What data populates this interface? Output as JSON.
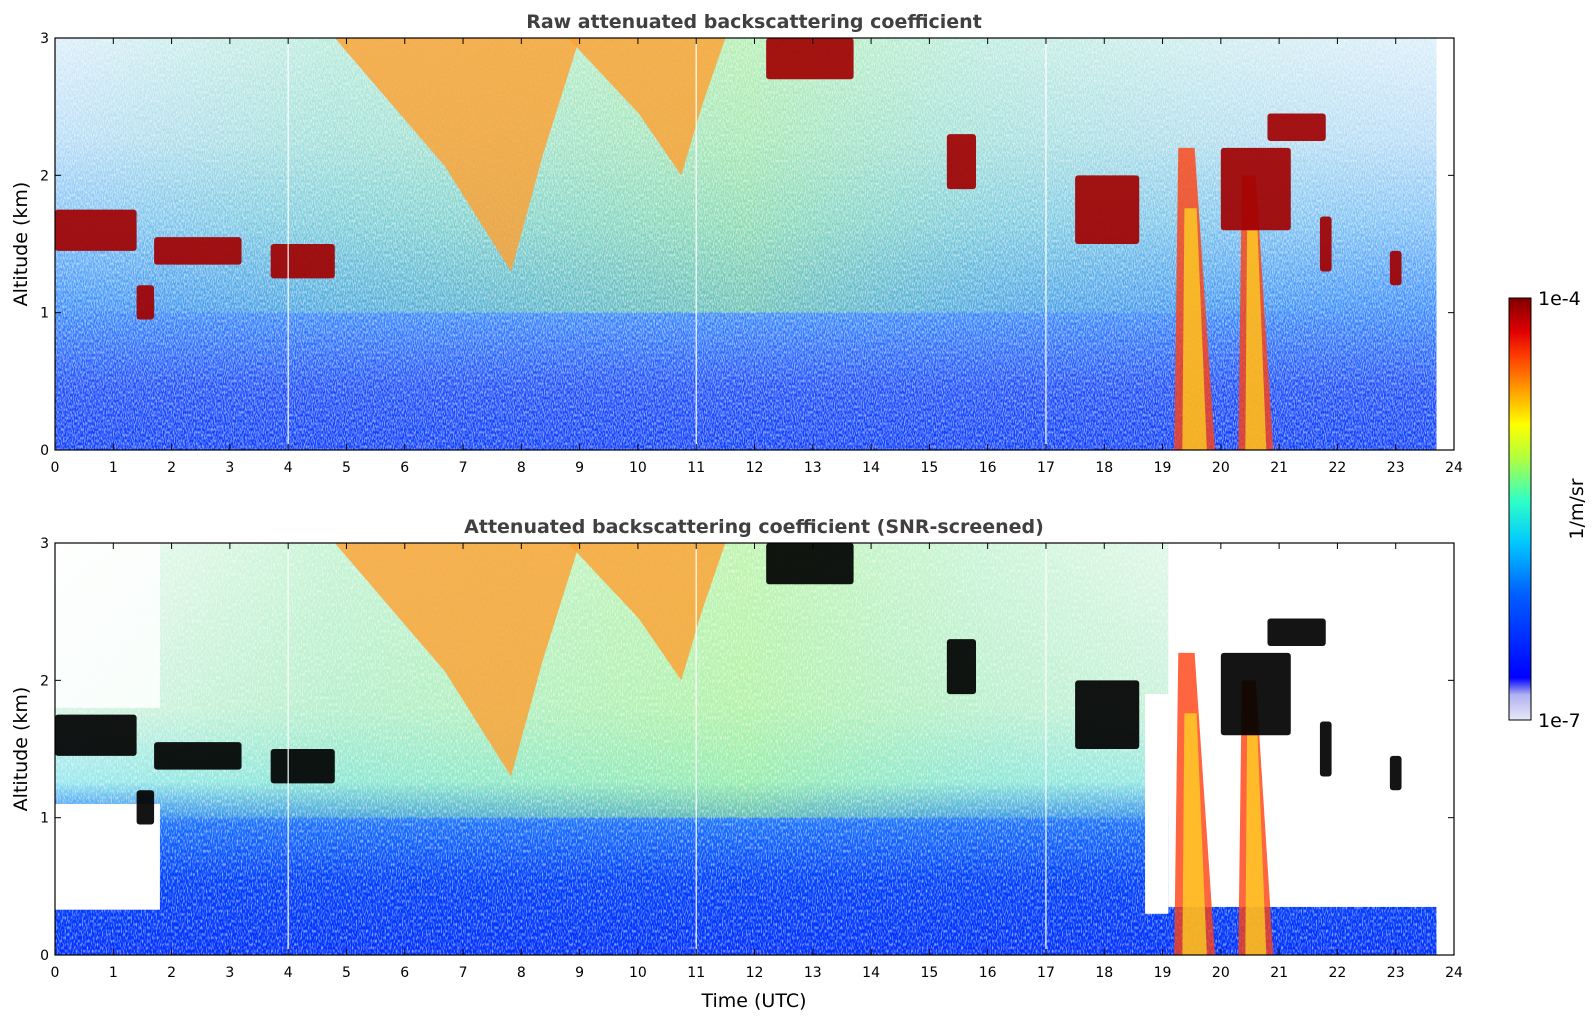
{
  "chart_data": [
    {
      "type": "heatmap",
      "title": "Raw attenuated backscattering coefficient",
      "xlabel": "",
      "ylabel": "Altitude (km)",
      "xlim": [
        0,
        24
      ],
      "ylim": [
        0,
        3
      ],
      "xticks": [
        "0",
        "1",
        "2",
        "3",
        "4",
        "5",
        "6",
        "7",
        "8",
        "9",
        "10",
        "11",
        "12",
        "13",
        "14",
        "15",
        "16",
        "17",
        "18",
        "19",
        "20",
        "21",
        "22",
        "23",
        "24"
      ],
      "yticks": [
        "0",
        "1",
        "2",
        "3"
      ],
      "data_end_time": 23.7,
      "gaps_utc": [
        4.0,
        11.0,
        17.0
      ],
      "features": [
        {
          "kind": "low_cloud",
          "t_start": 0.0,
          "t_end": 1.4,
          "alt_low": 1.45,
          "alt_high": 1.75,
          "level": "1e-4"
        },
        {
          "kind": "low_cloud",
          "t_start": 1.4,
          "t_end": 1.7,
          "alt_low": 0.95,
          "alt_high": 1.2,
          "level": "1e-4"
        },
        {
          "kind": "low_cloud",
          "t_start": 1.7,
          "t_end": 3.2,
          "alt_low": 1.35,
          "alt_high": 1.55,
          "level": "1e-4"
        },
        {
          "kind": "low_cloud",
          "t_start": 3.7,
          "t_end": 4.8,
          "alt_low": 1.25,
          "alt_high": 1.5,
          "level": "1e-4"
        },
        {
          "kind": "virga",
          "t_start": 4.8,
          "t_end": 9.0,
          "alt_low": 1.3,
          "alt_high": 3.0,
          "level": "mid-high"
        },
        {
          "kind": "virga",
          "t_start": 8.8,
          "t_end": 11.5,
          "alt_low": 2.0,
          "alt_high": 3.0,
          "level": "mid-high"
        },
        {
          "kind": "high_cloud",
          "t_start": 12.2,
          "t_end": 13.7,
          "alt_low": 2.7,
          "alt_high": 3.0,
          "level": "1e-4"
        },
        {
          "kind": "cloud",
          "t_start": 15.3,
          "t_end": 15.8,
          "alt_low": 1.9,
          "alt_high": 2.3,
          "level": "1e-4"
        },
        {
          "kind": "cloud",
          "t_start": 17.5,
          "t_end": 18.6,
          "alt_low": 1.5,
          "alt_high": 2.0,
          "level": "1e-4"
        },
        {
          "kind": "precipitation",
          "t_start": 19.2,
          "t_end": 19.9,
          "alt_low": 0.0,
          "alt_high": 2.2,
          "level": "1e-4"
        },
        {
          "kind": "precipitation",
          "t_start": 20.3,
          "t_end": 20.9,
          "alt_low": 0.0,
          "alt_high": 2.0,
          "level": "high"
        },
        {
          "kind": "cloud",
          "t_start": 20.0,
          "t_end": 21.2,
          "alt_low": 1.6,
          "alt_high": 2.2,
          "level": "1e-4"
        },
        {
          "kind": "high_cloud",
          "t_start": 20.8,
          "t_end": 21.8,
          "alt_low": 2.25,
          "alt_high": 2.45,
          "level": "1e-4"
        },
        {
          "kind": "cloud",
          "t_start": 21.7,
          "t_end": 21.9,
          "alt_low": 1.3,
          "alt_high": 1.7,
          "level": "1e-4"
        },
        {
          "kind": "cloud",
          "t_start": 22.9,
          "t_end": 23.1,
          "alt_low": 1.2,
          "alt_high": 1.45,
          "level": "1e-4"
        }
      ]
    },
    {
      "type": "heatmap",
      "title": "Attenuated backscattering coefficient (SNR-screened)",
      "xlabel": "Time (UTC)",
      "ylabel": "Altitude (km)",
      "xlim": [
        0,
        24
      ],
      "ylim": [
        0,
        3
      ],
      "xticks": [
        "0",
        "1",
        "2",
        "3",
        "4",
        "5",
        "6",
        "7",
        "8",
        "9",
        "10",
        "11",
        "12",
        "13",
        "14",
        "15",
        "16",
        "17",
        "18",
        "19",
        "20",
        "21",
        "22",
        "23",
        "24"
      ],
      "yticks": [
        "0",
        "1",
        "2",
        "3"
      ],
      "screened": true
    }
  ],
  "colorbar": {
    "label": "1/m/sr",
    "max_label": "1e-4",
    "min_label": "1e-7",
    "colormap": "jet",
    "scale": "log",
    "colors": [
      "#e6e6f5",
      "#0000ff",
      "#00c8ff",
      "#ffff00",
      "#ff8000",
      "#ff0000",
      "#7f0000"
    ]
  }
}
